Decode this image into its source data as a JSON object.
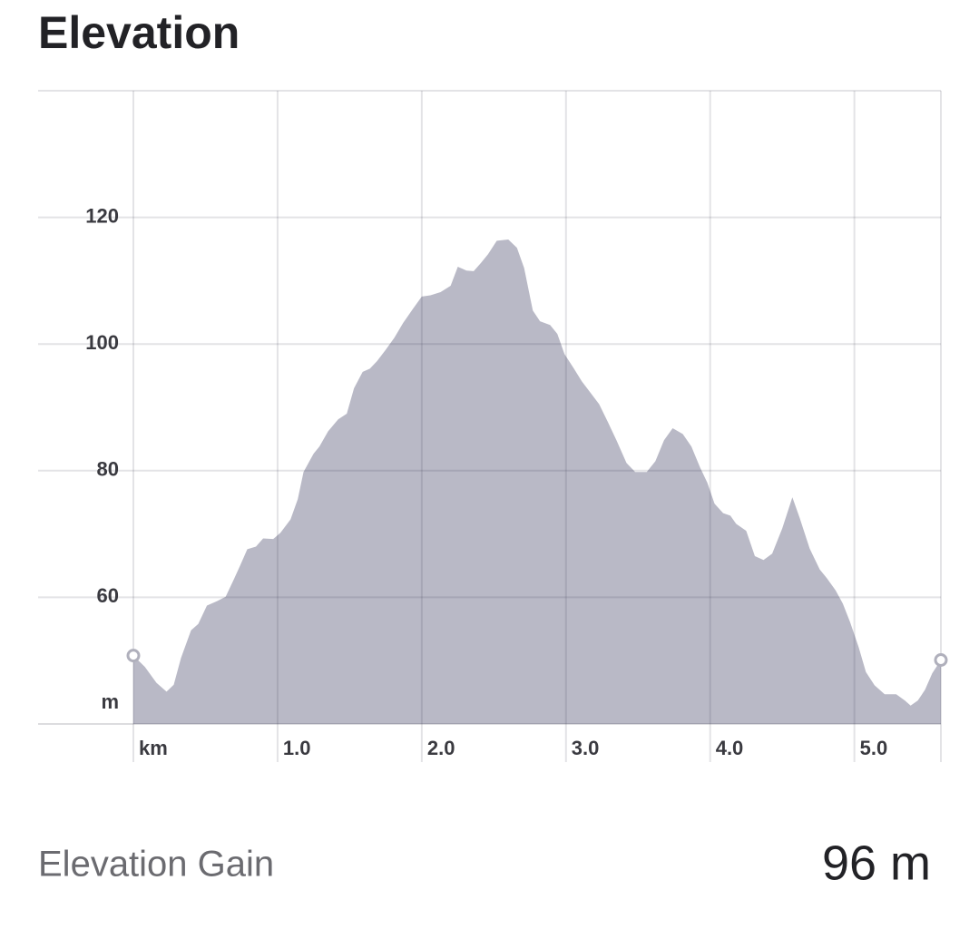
{
  "chart_data": {
    "type": "area",
    "title": "Elevation",
    "color": "#b9b9c6",
    "x_label": "km",
    "y_label": "m",
    "x": [
      0,
      0.08,
      0.16,
      0.23,
      0.28,
      0.33,
      0.4,
      0.45,
      0.51,
      0.58,
      0.64,
      0.7,
      0.74,
      0.79,
      0.85,
      0.9,
      0.97,
      1.02,
      1.09,
      1.14,
      1.18,
      1.25,
      1.29,
      1.35,
      1.42,
      1.48,
      1.53,
      1.59,
      1.64,
      1.69,
      1.75,
      1.81,
      1.87,
      1.94,
      2.0,
      2.06,
      2.13,
      2.2,
      2.25,
      2.31,
      2.36,
      2.41,
      2.46,
      2.52,
      2.6,
      2.66,
      2.71,
      2.77,
      2.82,
      2.89,
      2.94,
      2.99,
      3.05,
      3.11,
      3.18,
      3.23,
      3.29,
      3.35,
      3.42,
      3.48,
      3.56,
      3.62,
      3.68,
      3.74,
      3.81,
      3.87,
      3.93,
      3.98,
      4.03,
      4.09,
      4.14,
      4.18,
      4.25,
      4.31,
      4.37,
      4.43,
      4.5,
      4.57,
      4.62,
      4.69,
      4.76,
      4.81,
      4.87,
      4.92,
      4.97,
      5.03,
      5.08,
      5.14,
      5.21,
      5.29,
      5.35,
      5.39,
      5.44,
      5.49,
      5.54,
      5.6
    ],
    "values": [
      50.8,
      49.0,
      46.5,
      45.1,
      46.2,
      50.4,
      54.8,
      55.8,
      58.7,
      59.4,
      60.1,
      63.0,
      65.0,
      67.6,
      68.0,
      69.3,
      69.2,
      70.2,
      72.3,
      75.5,
      79.8,
      82.7,
      83.8,
      86.2,
      88.1,
      89.0,
      93.0,
      95.6,
      96.1,
      97.3,
      99.1,
      101.0,
      103.3,
      105.6,
      107.5,
      107.7,
      108.2,
      109.2,
      112.2,
      111.6,
      111.5,
      112.8,
      114.2,
      116.3,
      116.5,
      115.2,
      112.0,
      105.3,
      103.6,
      103.0,
      101.6,
      98.4,
      96.3,
      94.1,
      92.0,
      90.5,
      87.7,
      84.8,
      81.2,
      79.8,
      79.8,
      81.5,
      84.8,
      86.7,
      85.8,
      83.8,
      80.5,
      78.1,
      74.8,
      73.3,
      72.9,
      71.6,
      70.5,
      66.5,
      65.9,
      66.9,
      70.9,
      75.8,
      72.6,
      67.7,
      64.4,
      63.0,
      61.1,
      59.0,
      56.1,
      52.1,
      48.2,
      46.1,
      44.7,
      44.7,
      43.7,
      42.9,
      43.7,
      45.4,
      48.0,
      50.1
    ],
    "xlim": [
      0,
      5.6
    ],
    "ylim": [
      40,
      140
    ],
    "xticks": [
      {
        "value": 0,
        "label": "km"
      },
      {
        "value": 1,
        "label": "1.0"
      },
      {
        "value": 2,
        "label": "2.0"
      },
      {
        "value": 3,
        "label": "3.0"
      },
      {
        "value": 4,
        "label": "4.0"
      },
      {
        "value": 5,
        "label": "5.0"
      }
    ],
    "yticks": [
      60,
      80,
      100,
      120
    ],
    "grid": true
  },
  "stats": {
    "label": "Elevation Gain",
    "value": "96 m"
  }
}
